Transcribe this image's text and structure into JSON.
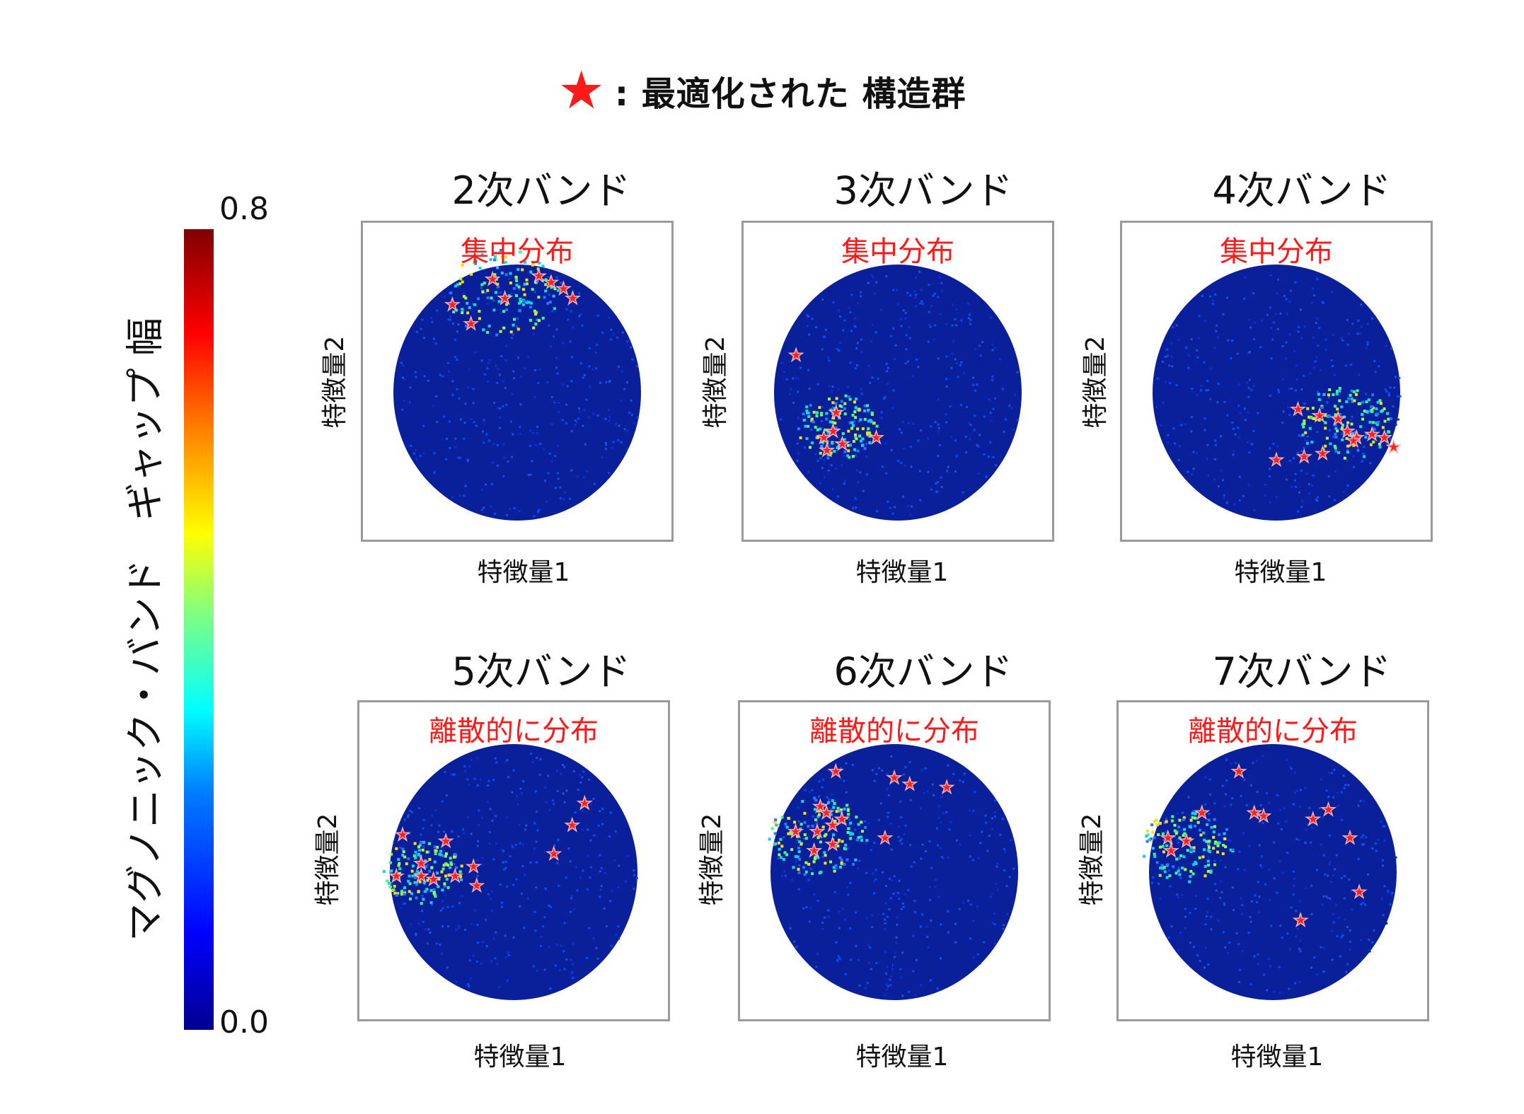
{
  "legend": {
    "symbol": "★",
    "text": ": 最適化された 構造群",
    "color": "#ff1a1a"
  },
  "colorbar": {
    "max_label": "0.8",
    "min_label": "0.0",
    "label": "マグノニック・バンド　ギャップ 幅",
    "colormap": "jet",
    "range": [
      0.0,
      0.8
    ]
  },
  "chart_data": [
    {
      "type": "scatter",
      "title": "2次バンド",
      "annotation": "集中分布",
      "xlabel": "特徴量1",
      "ylabel": "特徴量2",
      "hotspot": [
        0.45,
        0.22
      ],
      "spread": 0.18,
      "highlight": "top",
      "optimized_points": [
        [
          0.29,
          0.26
        ],
        [
          0.35,
          0.32
        ],
        [
          0.42,
          0.18
        ],
        [
          0.57,
          0.17
        ],
        [
          0.61,
          0.19
        ],
        [
          0.65,
          0.21
        ],
        [
          0.68,
          0.24
        ],
        [
          0.46,
          0.24
        ]
      ]
    },
    {
      "type": "scatter",
      "title": "3次バンド",
      "annotation": "集中分布",
      "xlabel": "特徴量1",
      "ylabel": "特徴量2",
      "hotspot": [
        0.3,
        0.64
      ],
      "spread": 0.13,
      "highlight": "lower-left",
      "optimized_points": [
        [
          0.17,
          0.42
        ],
        [
          0.3,
          0.6
        ],
        [
          0.26,
          0.68
        ],
        [
          0.32,
          0.7
        ],
        [
          0.27,
          0.72
        ],
        [
          0.43,
          0.68
        ],
        [
          0.29,
          0.66
        ]
      ]
    },
    {
      "type": "scatter",
      "title": "4次バンド",
      "annotation": "集中分布",
      "xlabel": "特徴量1",
      "ylabel": "特徴量2",
      "hotspot": [
        0.72,
        0.63
      ],
      "spread": 0.15,
      "highlight": "lower-right",
      "optimized_points": [
        [
          0.57,
          0.59
        ],
        [
          0.64,
          0.61
        ],
        [
          0.7,
          0.62
        ],
        [
          0.73,
          0.66
        ],
        [
          0.76,
          0.68
        ],
        [
          0.81,
          0.67
        ],
        [
          0.85,
          0.68
        ],
        [
          0.88,
          0.71
        ],
        [
          0.5,
          0.75
        ],
        [
          0.59,
          0.74
        ],
        [
          0.65,
          0.73
        ],
        [
          0.75,
          0.69
        ]
      ]
    },
    {
      "type": "scatter",
      "title": "5次バンド",
      "annotation": "離散的に分布",
      "xlabel": "特徴量1",
      "ylabel": "特徴量2",
      "hotspot": [
        0.2,
        0.53
      ],
      "spread": 0.13,
      "highlight": "left",
      "optimized_points": [
        [
          0.14,
          0.42
        ],
        [
          0.2,
          0.51
        ],
        [
          0.28,
          0.44
        ],
        [
          0.2,
          0.55
        ],
        [
          0.24,
          0.56
        ],
        [
          0.31,
          0.55
        ],
        [
          0.37,
          0.52
        ],
        [
          0.38,
          0.58
        ],
        [
          0.12,
          0.55
        ],
        [
          0.63,
          0.48
        ],
        [
          0.69,
          0.39
        ],
        [
          0.73,
          0.32
        ]
      ]
    },
    {
      "type": "scatter",
      "title": "6次バンド",
      "annotation": "離散的に分布",
      "xlabel": "特徴量1",
      "ylabel": "特徴量2",
      "hotspot": [
        0.25,
        0.42
      ],
      "spread": 0.16,
      "highlight": "scattered",
      "optimized_points": [
        [
          0.31,
          0.22
        ],
        [
          0.26,
          0.33
        ],
        [
          0.28,
          0.35
        ],
        [
          0.3,
          0.39
        ],
        [
          0.33,
          0.37
        ],
        [
          0.18,
          0.41
        ],
        [
          0.25,
          0.41
        ],
        [
          0.3,
          0.45
        ],
        [
          0.24,
          0.47
        ],
        [
          0.47,
          0.43
        ],
        [
          0.5,
          0.24
        ],
        [
          0.55,
          0.26
        ],
        [
          0.67,
          0.27
        ]
      ]
    },
    {
      "type": "scatter",
      "title": "7次バンド",
      "annotation": "離散的に分布",
      "xlabel": "特徴量1",
      "ylabel": "特徴量2",
      "hotspot": [
        0.22,
        0.45
      ],
      "spread": 0.15,
      "highlight": "scattered",
      "optimized_points": [
        [
          0.16,
          0.43
        ],
        [
          0.22,
          0.44
        ],
        [
          0.17,
          0.47
        ],
        [
          0.27,
          0.35
        ],
        [
          0.39,
          0.22
        ],
        [
          0.44,
          0.35
        ],
        [
          0.47,
          0.36
        ],
        [
          0.63,
          0.37
        ],
        [
          0.68,
          0.34
        ],
        [
          0.75,
          0.43
        ],
        [
          0.78,
          0.6
        ],
        [
          0.59,
          0.69
        ]
      ]
    }
  ]
}
